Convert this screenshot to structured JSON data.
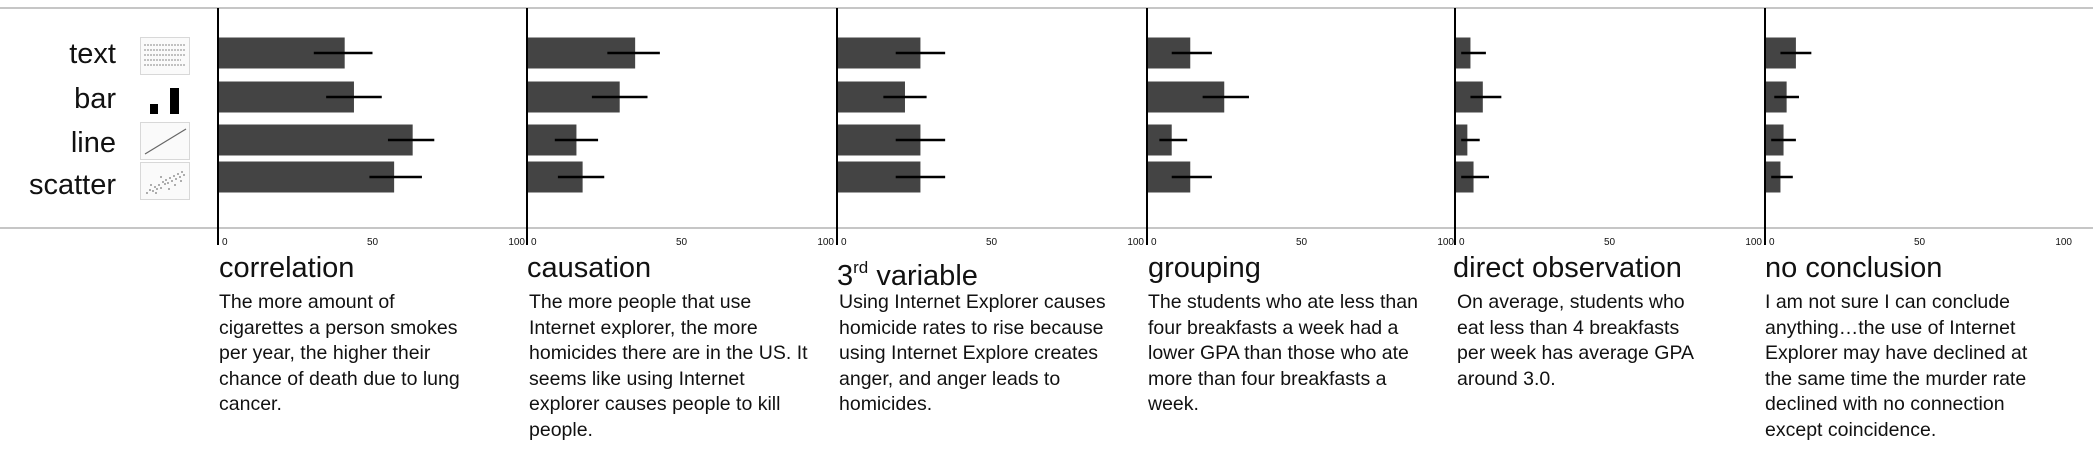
{
  "row_labels": [
    "text",
    "bar",
    "line",
    "scatter"
  ],
  "axis_ticks": [
    "0",
    "50",
    "100"
  ],
  "colors": {
    "bar": "#444444",
    "error": "#000000",
    "axis": "#000000",
    "rule": "#b4b4b4"
  },
  "panels": [
    {
      "title": "correlation",
      "title_sup": "",
      "text": "The more amount of cigarettes a person smokes per year, the higher their chance of death due to lung cancer."
    },
    {
      "title": "causation",
      "title_sup": "",
      "text": "The more people that use Internet explorer, the more homicides there are in the US. It seems like using Internet explorer causes people to kill people."
    },
    {
      "title": "variable",
      "title_prefix": "3",
      "title_sup": "rd",
      "text": "Using Internet Explorer causes homicide rates to rise because using Internet Explore creates anger, and anger leads to homicides."
    },
    {
      "title": "grouping",
      "title_sup": "",
      "text": "The students who ate less than four breakfasts a week had a lower GPA than those who ate more than four breakfasts a week."
    },
    {
      "title": "direct observation",
      "title_sup": "",
      "text": "On average, students who eat less than 4 breakfasts per week has average GPA around 3.0."
    },
    {
      "title": "no conclusion",
      "title_sup": "",
      "text": "I am not sure I can conclude anything…the use of Internet Explorer may have declined at the same time the murder rate declined with no connection except coincidence."
    }
  ],
  "chart_data": {
    "type": "bar",
    "orientation": "horizontal",
    "categories": [
      "text",
      "bar",
      "line",
      "scatter"
    ],
    "xlim": [
      0,
      100
    ],
    "panels": [
      {
        "name": "correlation",
        "values": [
          41,
          44,
          63,
          57
        ],
        "err_low": [
          31,
          35,
          55,
          49
        ],
        "err_high": [
          50,
          53,
          70,
          66
        ]
      },
      {
        "name": "causation",
        "values": [
          35,
          30,
          16,
          18
        ],
        "err_low": [
          26,
          21,
          9,
          10
        ],
        "err_high": [
          43,
          39,
          23,
          25
        ]
      },
      {
        "name": "3rd variable",
        "values": [
          27,
          22,
          27,
          27
        ],
        "err_low": [
          19,
          15,
          19,
          19
        ],
        "err_high": [
          35,
          29,
          35,
          35
        ]
      },
      {
        "name": "grouping",
        "values": [
          14,
          25,
          8,
          14
        ],
        "err_low": [
          8,
          18,
          4,
          8
        ],
        "err_high": [
          21,
          33,
          13,
          21
        ]
      },
      {
        "name": "direct observation",
        "values": [
          5,
          9,
          4,
          6
        ],
        "err_low": [
          2,
          5,
          2,
          2
        ],
        "err_high": [
          10,
          15,
          8,
          11
        ]
      },
      {
        "name": "no conclusion",
        "values": [
          10,
          7,
          6,
          5
        ],
        "err_low": [
          5,
          3,
          2,
          2
        ],
        "err_high": [
          15,
          11,
          10,
          9
        ]
      }
    ]
  }
}
